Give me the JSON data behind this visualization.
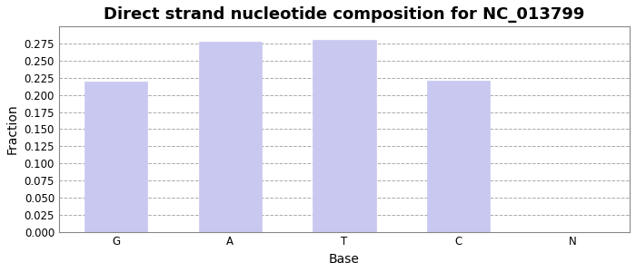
{
  "title": "Direct strand nucleotide composition for NC_013799",
  "xlabel": "Base",
  "ylabel": "Fraction",
  "categories": [
    "G",
    "A",
    "T",
    "C",
    "N"
  ],
  "values": [
    0.22,
    0.278,
    0.281,
    0.221,
    5e-05
  ],
  "bar_color": "#c8c8f0",
  "bar_edgecolor": "#c8c8f0",
  "ylim": [
    0.0,
    0.2875
  ],
  "ytick_step": 0.025,
  "background_color": "#ffffff",
  "plot_bg_color": "#ffffff",
  "grid_color": "#aaaaaa",
  "spine_color": "#888888",
  "title_fontsize": 13,
  "axis_label_fontsize": 10,
  "tick_fontsize": 8.5,
  "bar_width": 0.55
}
